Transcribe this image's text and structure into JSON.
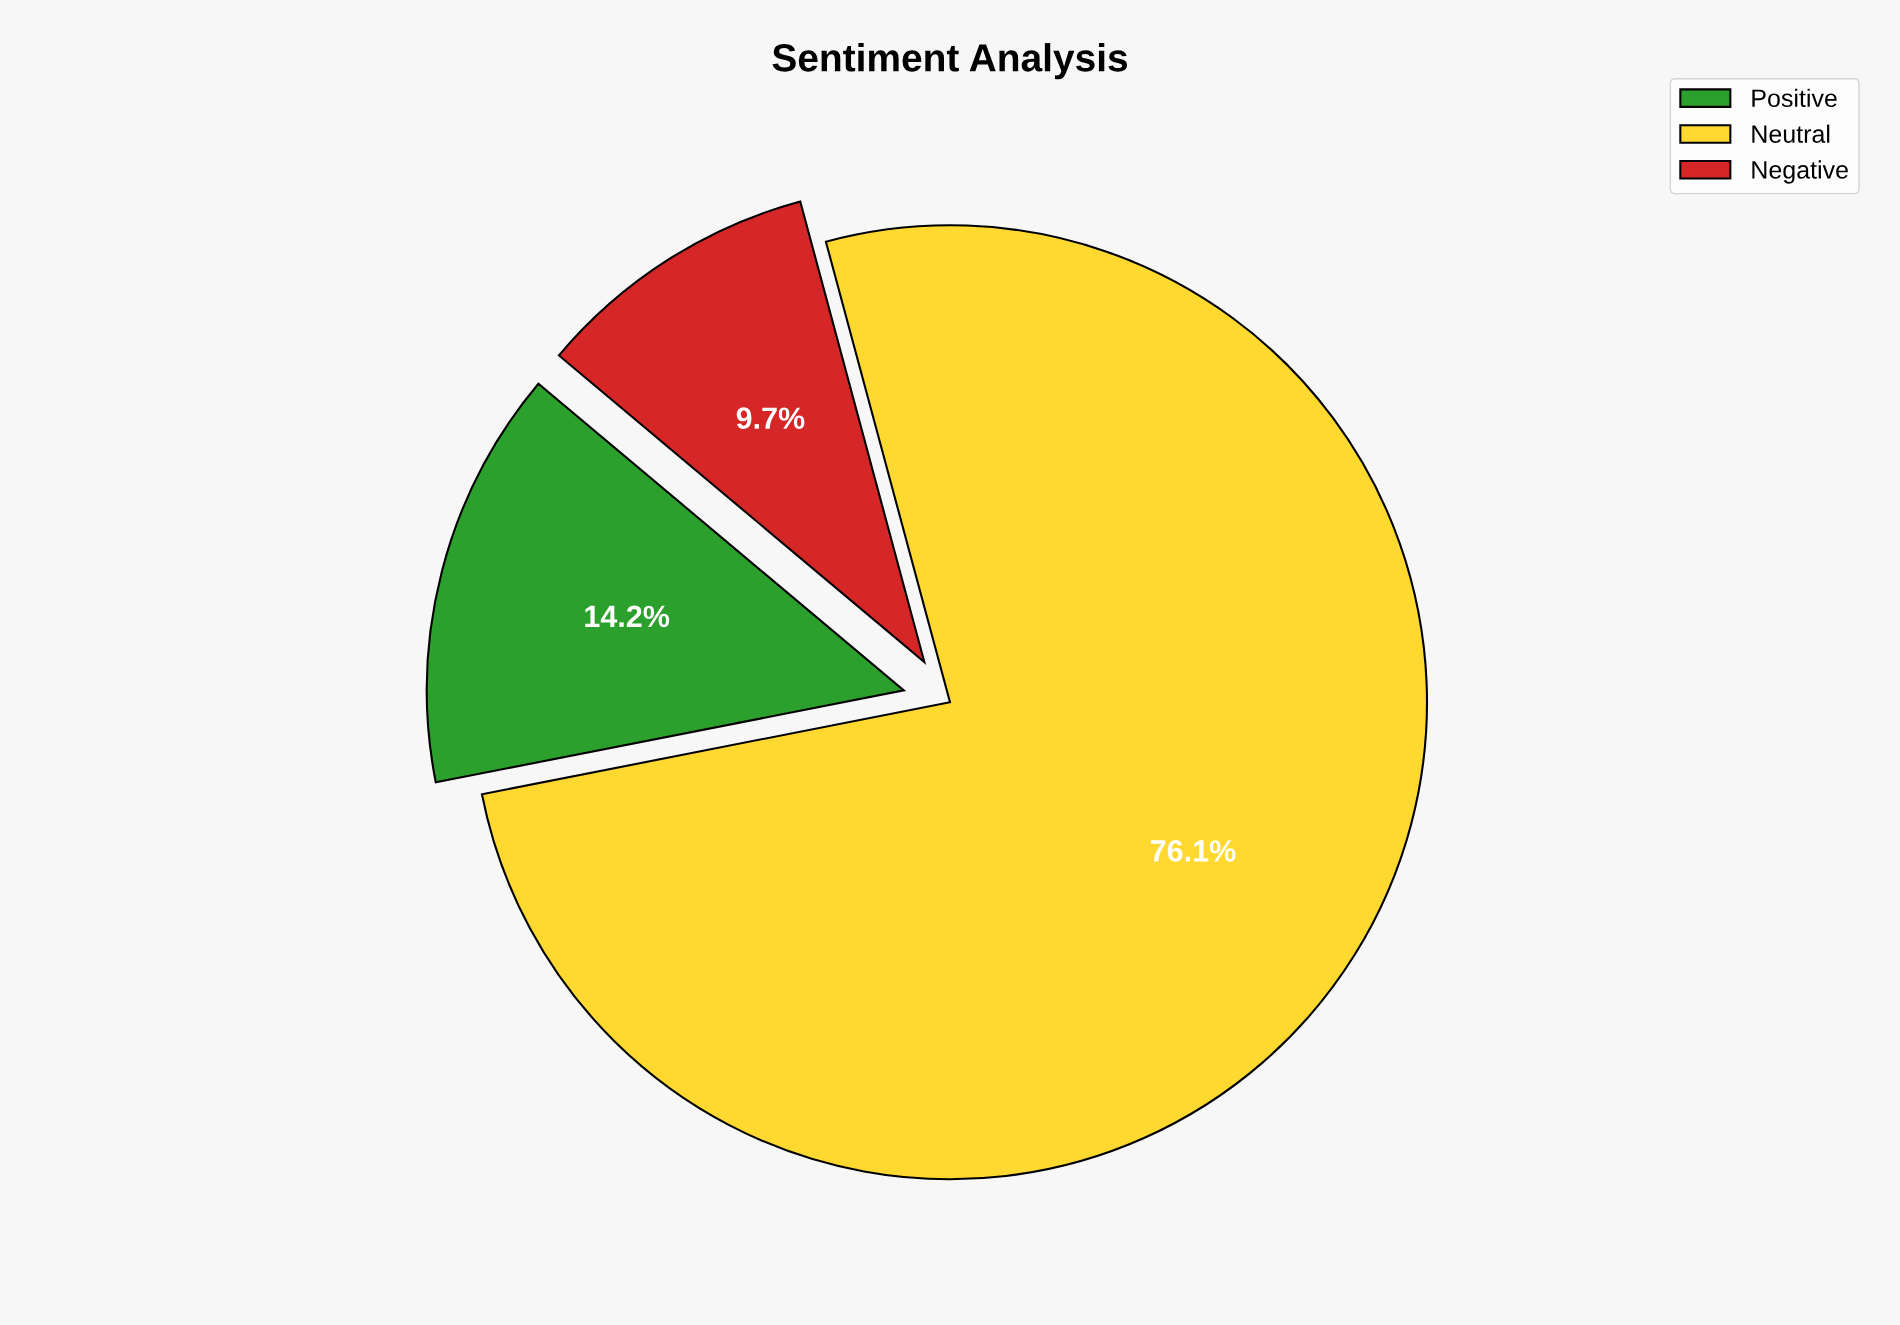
{
  "chart_data": {
    "type": "pie",
    "title": "Sentiment Analysis",
    "categories": [
      "Positive",
      "Neutral",
      "Negative"
    ],
    "values": [
      14.2,
      76.1,
      9.7
    ],
    "value_labels": [
      "14.2%",
      "76.1%",
      "9.7%"
    ],
    "colors": [
      "#2ca02c",
      "#ffd92f",
      "#d62728"
    ],
    "legend": "top right"
  }
}
